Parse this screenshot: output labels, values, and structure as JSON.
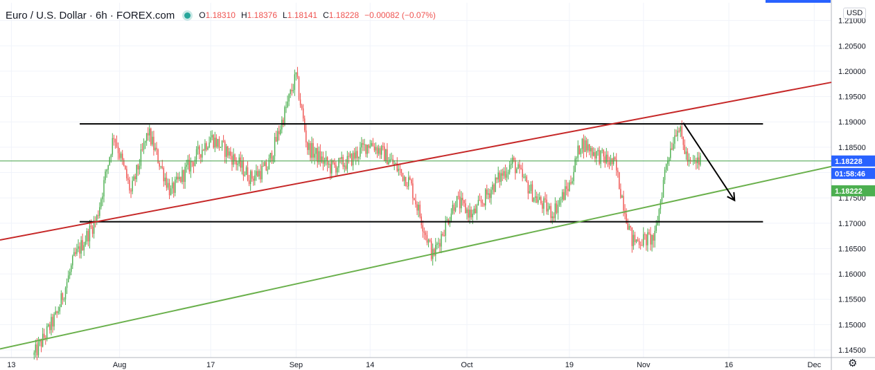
{
  "header": {
    "symbol_title": "Euro / U.S. Dollar · 6h · FOREX.com",
    "open_label": "O",
    "open": "1.18310",
    "high_label": "H",
    "high": "1.18376",
    "low_label": "L",
    "low": "1.18141",
    "close_label": "C",
    "close": "1.18228",
    "change": "−0.00082 (−0.07%)",
    "status_icon": "market-open-dot-icon"
  },
  "price_scale": {
    "currency": "USD",
    "settings_icon": "gear-icon"
  },
  "colors": {
    "up": "#26a69a",
    "candle_up": "#4caf50",
    "candle_down": "#ef5350",
    "channel_red": "#c62828",
    "trend_green": "#6ab04c",
    "level_line": "#43a047",
    "last_price_bg": "#2962ff",
    "level_bg": "#4caf50",
    "grid": "#f0f3fa"
  },
  "chart_data": {
    "type": "candlestick",
    "title": "Euro / U.S. Dollar · 6h · FOREX.com",
    "y_axis": {
      "ylim": [
        1.1435,
        1.2135
      ],
      "ticks": [
        "1.14500",
        "1.15000",
        "1.15500",
        "1.16000",
        "1.16500",
        "1.17000",
        "1.17500",
        "1.18000",
        "1.18500",
        "1.19000",
        "1.19500",
        "1.20000",
        "1.20500",
        "1.21000"
      ]
    },
    "x_axis": {
      "date_range": [
        "2020-07-11",
        "2020-12-04"
      ],
      "ticks": [
        {
          "date": "2020-07-13",
          "label": "13"
        },
        {
          "date": "2020-08-01",
          "label": "Aug"
        },
        {
          "date": "2020-08-17",
          "label": "17"
        },
        {
          "date": "2020-09-01",
          "label": "Sep"
        },
        {
          "date": "2020-09-14",
          "label": "14"
        },
        {
          "date": "2020-10-01",
          "label": "Oct"
        },
        {
          "date": "2020-10-19",
          "label": "19"
        },
        {
          "date": "2020-11-01",
          "label": "Nov"
        },
        {
          "date": "2020-11-16",
          "label": "16"
        },
        {
          "date": "2020-12-01",
          "label": "Dec"
        }
      ]
    },
    "price_path": [
      {
        "date": "2020-07-17",
        "close": 1.144
      },
      {
        "date": "2020-07-21",
        "close": 1.152
      },
      {
        "date": "2020-07-24",
        "close": 1.163
      },
      {
        "date": "2020-07-28",
        "close": 1.171
      },
      {
        "date": "2020-07-31",
        "close": 1.1875
      },
      {
        "date": "2020-08-03",
        "close": 1.176
      },
      {
        "date": "2020-08-06",
        "close": 1.188
      },
      {
        "date": "2020-08-10",
        "close": 1.176
      },
      {
        "date": "2020-08-13",
        "close": 1.181
      },
      {
        "date": "2020-08-17",
        "close": 1.187
      },
      {
        "date": "2020-08-20",
        "close": 1.184
      },
      {
        "date": "2020-08-24",
        "close": 1.179
      },
      {
        "date": "2020-08-27",
        "close": 1.181
      },
      {
        "date": "2020-09-01",
        "close": 1.199
      },
      {
        "date": "2020-09-03",
        "close": 1.185
      },
      {
        "date": "2020-09-07",
        "close": 1.181
      },
      {
        "date": "2020-09-10",
        "close": 1.182
      },
      {
        "date": "2020-09-14",
        "close": 1.186
      },
      {
        "date": "2020-09-17",
        "close": 1.183
      },
      {
        "date": "2020-09-21",
        "close": 1.178
      },
      {
        "date": "2020-09-25",
        "close": 1.1635
      },
      {
        "date": "2020-09-29",
        "close": 1.1745
      },
      {
        "date": "2020-10-02",
        "close": 1.1715
      },
      {
        "date": "2020-10-06",
        "close": 1.178
      },
      {
        "date": "2020-10-09",
        "close": 1.182
      },
      {
        "date": "2020-10-13",
        "close": 1.175
      },
      {
        "date": "2020-10-16",
        "close": 1.172
      },
      {
        "date": "2020-10-19",
        "close": 1.1775
      },
      {
        "date": "2020-10-21",
        "close": 1.186
      },
      {
        "date": "2020-10-24",
        "close": 1.1835
      },
      {
        "date": "2020-10-27",
        "close": 1.1815
      },
      {
        "date": "2020-10-30",
        "close": 1.1665
      },
      {
        "date": "2020-11-03",
        "close": 1.167
      },
      {
        "date": "2020-11-05",
        "close": 1.182
      },
      {
        "date": "2020-11-07",
        "close": 1.1895
      },
      {
        "date": "2020-11-09",
        "close": 1.1815
      },
      {
        "date": "2020-11-11",
        "close": 1.18228
      }
    ],
    "drawings": {
      "resistance_line": {
        "price": 1.1896,
        "from": "2020-07-25",
        "to": "2020-11-22"
      },
      "support_line": {
        "price": 1.1703,
        "from": "2020-07-25",
        "to": "2020-11-22"
      },
      "red_trendline": {
        "from": {
          "date": "2020-07-11",
          "price": 1.1667
        },
        "to": {
          "date": "2020-12-04",
          "price": 1.1978
        }
      },
      "green_trendline": {
        "from": {
          "date": "2020-07-11",
          "price": 1.1452
        },
        "to": {
          "date": "2020-12-04",
          "price": 1.1812
        }
      },
      "current_price_line": {
        "price": 1.18228
      },
      "projection_arrow": {
        "from": {
          "date": "2020-11-08",
          "price": 1.1898
        },
        "to": {
          "date": "2020-11-17",
          "price": 1.1745
        }
      }
    },
    "price_labels": [
      {
        "value": "1.18228",
        "kind": "last-price"
      },
      {
        "value": "01:58:46",
        "kind": "countdown"
      },
      {
        "value": "1.18222",
        "kind": "level"
      }
    ]
  }
}
